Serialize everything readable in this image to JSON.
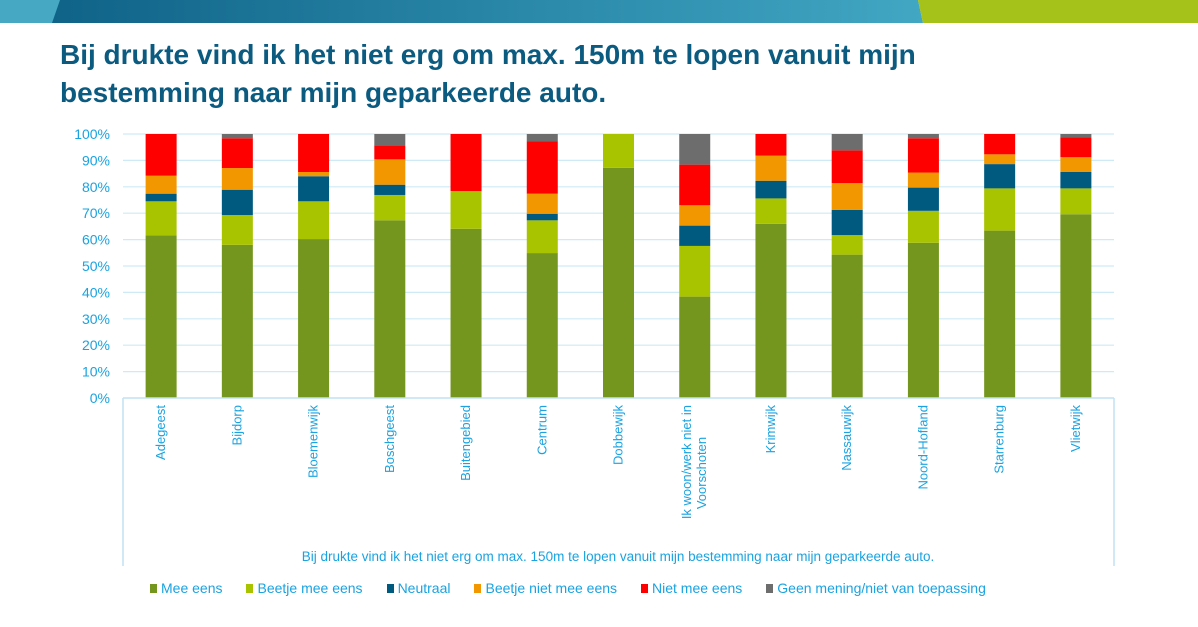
{
  "header": {
    "title_line1": "Bij drukte vind ik het niet erg om max. 150m te lopen vanuit mijn",
    "title_line2": "bestemming naar mijn geparkeerde auto.",
    "banner_colors": {
      "left": "#46a8c2",
      "gradient_start": "#0f6388",
      "gradient_end": "#41a7c3",
      "right": "#a4c21a"
    }
  },
  "chart_data": {
    "type": "bar",
    "stacked": true,
    "title": "",
    "xlabel": "Bij drukte vind ik het niet erg om max. 150m te lopen vanuit mijn bestemming naar mijn geparkeerde auto.",
    "ylabel": "",
    "ylim": [
      0,
      100
    ],
    "yticks": [
      "0%",
      "10%",
      "20%",
      "30%",
      "40%",
      "50%",
      "60%",
      "70%",
      "80%",
      "90%",
      "100%"
    ],
    "grid": true,
    "legend_position": "bottom",
    "categories": [
      [
        "Adegeest"
      ],
      [
        "Bijdorp"
      ],
      [
        "Bloemenwijk"
      ],
      [
        "Boschgeest"
      ],
      [
        "Buitengebied"
      ],
      [
        "Centrum"
      ],
      [
        "Dobbewijk"
      ],
      [
        "Ik woon/werk niet in",
        "Voorschoten"
      ],
      [
        "Krimwijk"
      ],
      [
        "Nassauwijk"
      ],
      [
        "Noord-Hofland"
      ],
      [
        "Starrenburg"
      ],
      [
        "Vlietwijk"
      ]
    ],
    "series": [
      {
        "name": "Mee eens",
        "color": "#74961e",
        "values": [
          61.6,
          58.0,
          60.2,
          67.3,
          64.1,
          54.9,
          87.2,
          38.4,
          66.0,
          54.3,
          58.8,
          63.4,
          69.6
        ]
      },
      {
        "name": "Beetje mee eens",
        "color": "#a8c300",
        "values": [
          12.9,
          11.3,
          14.3,
          9.6,
          14.3,
          12.4,
          12.8,
          19.2,
          9.6,
          7.4,
          12.1,
          16.0,
          9.8
        ]
      },
      {
        "name": "Neutraal",
        "color": "#005a80",
        "values": [
          2.9,
          9.6,
          9.5,
          3.9,
          0,
          2.5,
          0,
          7.7,
          6.7,
          9.6,
          8.8,
          9.2,
          6.3
        ]
      },
      {
        "name": "Beetje niet mee eens",
        "color": "#f39700",
        "values": [
          6.8,
          8.2,
          1.6,
          9.6,
          0,
          7.6,
          0,
          7.7,
          9.5,
          10.1,
          5.7,
          3.7,
          5.5
        ]
      },
      {
        "name": "Niet mee eens",
        "color": "#ff0000",
        "values": [
          15.8,
          11.3,
          14.4,
          5.3,
          21.6,
          19.9,
          0,
          15.4,
          8.2,
          12.4,
          13.0,
          7.7,
          7.5
        ]
      },
      {
        "name": "Geen mening/niet van toepassing",
        "color": "#6d6d6d",
        "values": [
          0,
          1.6,
          0,
          4.3,
          0,
          2.7,
          0,
          11.6,
          0,
          6.2,
          1.6,
          0,
          1.3
        ]
      }
    ]
  }
}
